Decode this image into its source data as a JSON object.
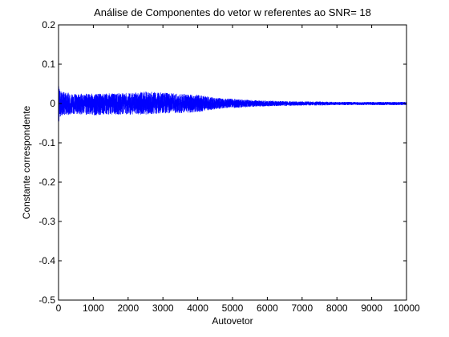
{
  "chart_data": {
    "type": "line",
    "title": "Análise de Componentes do vetor w referentes ao SNR= 18",
    "xlabel": "Autovetor",
    "ylabel": "Constante correspondente",
    "xlim": [
      0,
      10000
    ],
    "ylim": [
      -0.5,
      0.2
    ],
    "xticks": [
      0,
      1000,
      2000,
      3000,
      4000,
      5000,
      6000,
      7000,
      8000,
      9000,
      10000
    ],
    "yticks": [
      0.2,
      0.1,
      0,
      -0.1,
      -0.2,
      -0.3,
      -0.4,
      -0.5
    ],
    "xtick_labels": [
      "0",
      "1000",
      "2000",
      "3000",
      "4000",
      "5000",
      "6000",
      "7000",
      "8000",
      "9000",
      "10000"
    ],
    "ytick_labels": [
      "0.2",
      "0.1",
      "0",
      "-0.1",
      "-0.2",
      "-0.3",
      "-0.4",
      "-0.5"
    ],
    "grid": false,
    "series": [
      {
        "color": "#0000ff",
        "samples": 10000,
        "description_envelope": {
          "x": [
            0,
            10,
            30,
            100,
            500,
            1000,
            1500,
            2000,
            2500,
            3000,
            3500,
            4000,
            4500,
            5000,
            5500,
            6000,
            6500,
            7000,
            7500,
            8000,
            8500,
            9000,
            9500,
            10000
          ],
          "upper": [
            0.1,
            0.06,
            0.035,
            0.03,
            0.025,
            0.025,
            0.026,
            0.027,
            0.03,
            0.028,
            0.025,
            0.022,
            0.015,
            0.012,
            0.009,
            0.007,
            0.006,
            0.005,
            0.005,
            0.004,
            0.004,
            0.004,
            0.004,
            0.004
          ],
          "lower": [
            -0.09,
            -0.06,
            -0.035,
            -0.03,
            -0.028,
            -0.03,
            -0.028,
            -0.028,
            -0.028,
            -0.025,
            -0.025,
            -0.022,
            -0.015,
            -0.012,
            -0.009,
            -0.007,
            -0.006,
            -0.005,
            -0.005,
            -0.004,
            -0.004,
            -0.004,
            -0.004,
            -0.004
          ]
        }
      }
    ]
  }
}
